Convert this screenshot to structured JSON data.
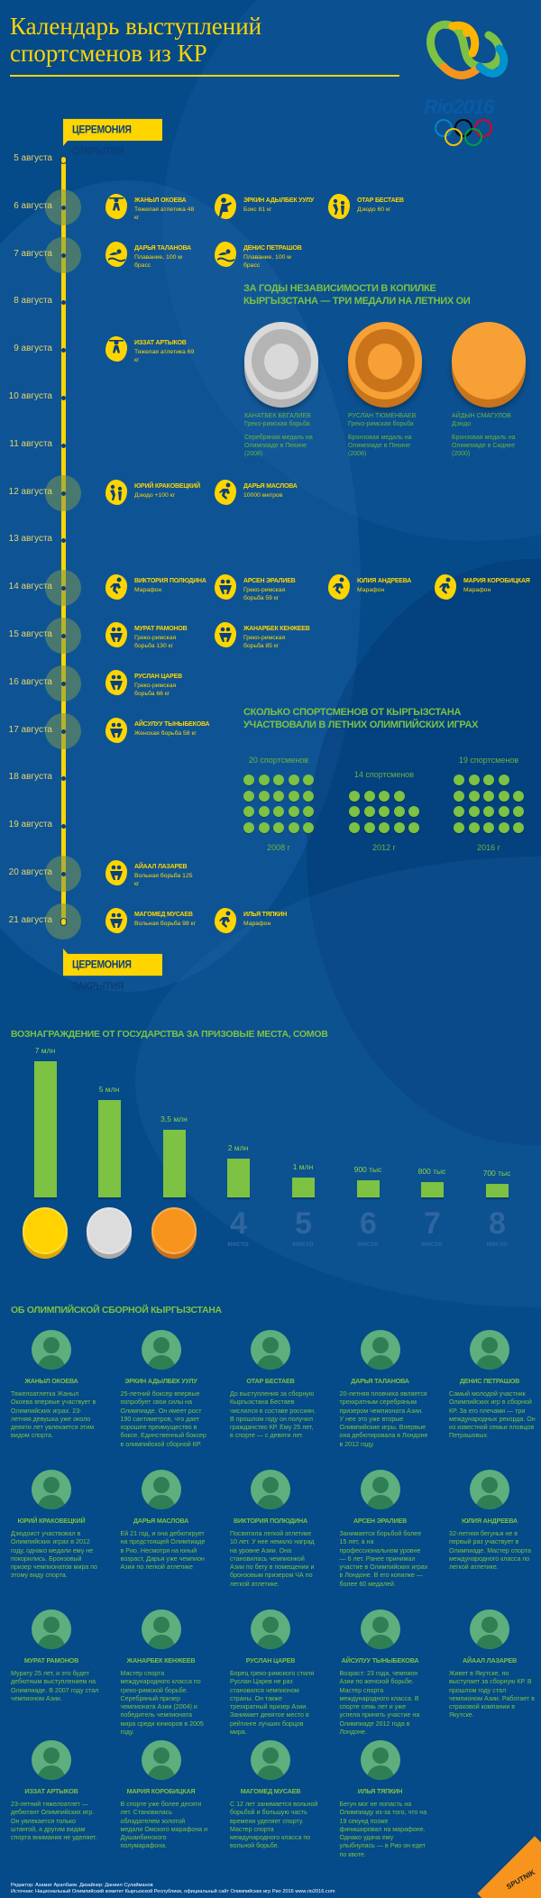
{
  "header": {
    "title_line1": "Календарь выступлений",
    "title_line2": "спортсменов из КР",
    "logo_text": "Rio2016"
  },
  "colors": {
    "background": "#054a89",
    "yellow": "#ffd500",
    "green": "#7dc242",
    "silver": "#c9c9c9",
    "bronze": "#f39a2b",
    "gold": "#ffd200"
  },
  "timeline": {
    "opening_label": "ЦЕРЕМОНИЯ ОТКРЫТИЯ",
    "closing_label": "ЦЕРЕМОНИЯ ЗАКРЫТИЯ",
    "days": [
      {
        "date": "5 августа",
        "highlight": false,
        "events": []
      },
      {
        "date": "6 августа",
        "highlight": true,
        "events": [
          {
            "name": "ЖАНЫЛ ОКОЕВА",
            "sport": "Тяжелая атлетика 48 кг",
            "icon": "weightlifting"
          },
          {
            "name": "ЭРКИН АДЫЛБЕК УУЛУ",
            "sport": "Бокс 81 кг",
            "icon": "boxing"
          },
          {
            "name": "ОТАР БЕСТАЕВ",
            "sport": "Дзюдо 60 кг",
            "icon": "judo"
          }
        ]
      },
      {
        "date": "7 августа",
        "highlight": true,
        "events": [
          {
            "name": "ДАРЬЯ ТАЛАНОВА",
            "sport": "Плавание, 100 м брасс",
            "icon": "swimming"
          },
          {
            "name": "ДЕНИС ПЕТРАШОВ",
            "sport": "Плавание, 100 м брасс",
            "icon": "swimming"
          }
        ]
      },
      {
        "date": "8 августа",
        "highlight": false,
        "events": []
      },
      {
        "date": "9 августа",
        "highlight": false,
        "events": [
          {
            "name": "ИЗЗАТ АРТЫКОВ",
            "sport": "Тяжелая атлетика 69 кг",
            "icon": "weightlifting"
          }
        ]
      },
      {
        "date": "10 августа",
        "highlight": false,
        "events": []
      },
      {
        "date": "11 августа",
        "highlight": false,
        "events": []
      },
      {
        "date": "12 августа",
        "highlight": true,
        "events": [
          {
            "name": "ЮРИЙ КРАКОВЕЦКИЙ",
            "sport": "Дзюдо +100 кг",
            "icon": "judo"
          },
          {
            "name": "ДАРЬЯ МАСЛОВА",
            "sport": "10000 метров",
            "icon": "running"
          }
        ]
      },
      {
        "date": "13 августа",
        "highlight": false,
        "events": []
      },
      {
        "date": "14 августа",
        "highlight": true,
        "events": [
          {
            "name": "ВИКТОРИЯ ПОЛЮДИНА",
            "sport": "Марафон",
            "icon": "running"
          },
          {
            "name": "АРСЕН ЭРАЛИЕВ",
            "sport": "Греко-римская борьба 59 кг",
            "icon": "wrestling"
          },
          {
            "name": "ЮЛИЯ АНДРЕЕВА",
            "sport": "Марафон",
            "icon": "running"
          },
          {
            "name": "МАРИЯ КОРОБИЦКАЯ",
            "sport": "Марафон",
            "icon": "running"
          }
        ]
      },
      {
        "date": "15 августа",
        "highlight": true,
        "events": [
          {
            "name": "МУРАТ РАМОНОВ",
            "sport": "Греко-римская борьба 130 кг",
            "icon": "wrestling"
          },
          {
            "name": "ЖАНАРБЕК КЕНЖЕЕВ",
            "sport": "Греко-римская борьба 85 кг",
            "icon": "wrestling"
          }
        ]
      },
      {
        "date": "16 августа",
        "highlight": true,
        "events": [
          {
            "name": "РУСЛАН ЦАРЕВ",
            "sport": "Греко-римская борьба 66 кг",
            "icon": "wrestling"
          }
        ]
      },
      {
        "date": "17 августа",
        "highlight": true,
        "events": [
          {
            "name": "АЙСУЛУУ ТЫНЫБЕКОВА",
            "sport": "Женская борьба 58 кг",
            "icon": "wrestling"
          }
        ]
      },
      {
        "date": "18 августа",
        "highlight": false,
        "events": []
      },
      {
        "date": "19 августа",
        "highlight": false,
        "events": []
      },
      {
        "date": "20 августа",
        "highlight": true,
        "events": [
          {
            "name": "АЙААЛ ЛАЗАРЕВ",
            "sport": "Вольная борьба 125 кг",
            "icon": "wrestling"
          }
        ]
      },
      {
        "date": "21 августа",
        "highlight": true,
        "events": [
          {
            "name": "МАГОМЕД МУСАЕВ",
            "sport": "Вольная борьба 98 кг",
            "icon": "wrestling"
          },
          {
            "name": "ИЛЬЯ ТЯПКИН",
            "sport": "Марафон",
            "icon": "running"
          }
        ]
      }
    ]
  },
  "medals_section": {
    "heading_line1": "ЗА ГОДЫ НЕЗАВИСИМОСТИ В КОПИЛКЕ",
    "heading_line2": "КЫРГЫЗСТАНА — ТРИ МЕДАЛИ НА ЛЕТНИХ ОИ",
    "medals": [
      {
        "name": "КАНАТБЕК БЕГАЛИЕВ",
        "sport": "Греко-римская борьба",
        "desc": "Серебряная медаль на Олимпиаде в Пекине (2008)",
        "type": "silver"
      },
      {
        "name": "РУСЛАН ТЮМЕНБАЕВ",
        "sport": "Греко-римская борьба",
        "desc": "Бронзовая медаль на Олимпиаде в Пекине (2008)",
        "type": "bronze"
      },
      {
        "name": "АЙДЫН СМАГУЛОВ",
        "sport": "Дзюдо",
        "desc": "Бронзовая медаль на Олимпиаде в Сиднее (2000)",
        "type": "bronze"
      }
    ]
  },
  "athletes_count": {
    "heading_line1": "СКОЛЬКО СПОРТСМЕНОВ ОТ КЫРГЫЗСТАНА",
    "heading_line2": "УЧАСТВОВАЛИ В ЛЕТНИХ ОЛИМПИЙСКИХ ИГРАХ",
    "games": [
      {
        "year": "2008 г",
        "count": 20,
        "label": "20 спортсменов"
      },
      {
        "year": "2012 г",
        "count": 14,
        "label": "14 спортсменов"
      },
      {
        "year": "2016 г",
        "count": 19,
        "label": "19 спортсменов"
      }
    ]
  },
  "chart_data": {
    "type": "bar",
    "title": "ВОЗНАГРАЖДЕНИЕ ОТ ГОСУДАРСТВА ЗА ПРИЗОВЫЕ МЕСТА, СОМОВ",
    "categories": [
      "gold",
      "silver",
      "bronze",
      "4",
      "5",
      "6",
      "7",
      "8"
    ],
    "place_word": "место",
    "values": [
      7000000,
      5000000,
      3500000,
      2000000,
      1000000,
      900000,
      800000,
      700000
    ],
    "value_labels": [
      "7 млн",
      "5 млн",
      "3,5 млн",
      "2 млн",
      "1 млн",
      "900 тыс",
      "800 тыс",
      "700 тыс"
    ],
    "ylim": [
      0,
      7000000
    ],
    "grid": false,
    "bar_color": "#7dc242"
  },
  "team": {
    "heading": "ОБ ОЛИМПИЙСКОЙ СБОРНОЙ КЫРГЫЗСТАНА",
    "athletes": [
      {
        "name": "ЖАНЫЛ ОКОЕВА",
        "bio": "Тяжелоатлетка Жаныл Окоева впервые участвует в Олимпийских играх. 23-летняя девушка уже около девяти лет увлекается этим видом спорта."
      },
      {
        "name": "ЭРКИН АДЫЛБЕК УУЛУ",
        "bio": "25-летний боксер впервые попробует свои силы на Олимпиаде. Он имеет рост 190 сантиметров, что дает хорошее преимущество в боксе. Единственный боксер в олимпийской сборной КР."
      },
      {
        "name": "ОТАР БЕСТАЕВ",
        "bio": "До выступления за сборную Кыргызстана Бестаев числился в составе россиян. В прошлом году он получил гражданство КР. Ему 25 лет, в спорте — с девяти лет."
      },
      {
        "name": "ДАРЬЯ ТАЛАНОВА",
        "bio": "20-летняя пловчиха является трехкратным серебряным призером чемпионата Азии. У нее это уже вторые Олимпийские игры. Впервые она дебютировала в Лондоне в 2012 году."
      },
      {
        "name": "ДЕНИС ПЕТРАШОВ",
        "bio": "Самый молодой участник Олимпийских игр в сборной КР. За его плечами — три международных рекорда. Он из известной семьи пловцов Петрашовых."
      },
      {
        "name": "ЮРИЙ КРАКОВЕЦКИЙ",
        "bio": "Дзюдоист участвовал в Олимпийских играх в 2012 году, однако медали ему не покорились. Бронзовый призер чемпионатов мира по этому виду спорта."
      },
      {
        "name": "ДАРЬЯ МАСЛОВА",
        "bio": "Ей 21 год, и она дебютирует на предстоящей Олимпиаде в Рио. Несмотря на юный возраст, Дарья уже чемпион Азии по легкой атлетике"
      },
      {
        "name": "ВИКТОРИЯ ПОЛЮДИНА",
        "bio": "Посвятила легкой атлетике 10 лет. У нее немало наград на уровне Азии. Она становилась чемпионкой Азии по бегу в помещении и бронзовым призером ЧА по легкой атлетике."
      },
      {
        "name": "АРСЕН ЭРАЛИЕВ",
        "bio": "Занимается борьбой более 15 лет, а на профессиональном уровне — 6 лет. Ранее принимал участие в Олимпийских играх в Лондоне. В его копилке — более 60 медалей."
      },
      {
        "name": "ЮЛИЯ АНДРЕЕВА",
        "bio": "32-летняя бегунья не в первый раз участвует в Олимпиаде. Мастер спорта международного класса по легкой атлетике."
      },
      {
        "name": "МУРАТ РАМОНОВ",
        "bio": "Мурату 25 лет, и это будет дебютным выступлением на Олимпиаде. В 2007 году стал чемпионом Азии."
      },
      {
        "name": "ЖАНАРБЕК КЕНЖЕЕВ",
        "bio": "Мастер спорта международного класса по греко-римской борьбе. Серебряный призер чемпионата Азии (2004) и победитель чемпионата мира среди юниоров в 2005 году."
      },
      {
        "name": "РУСЛАН ЦАРЕВ",
        "bio": "Борец греко-римского стиля Руслан Царев не раз становился чемпионом страны. Он также трехкратный призер Азии. Занимает девятое место в рейтинге лучших борцов мира."
      },
      {
        "name": "АЙСУЛУУ ТЫНЫБЕКОВА",
        "bio": "Возраст: 23 года, чемпион Азии по женской борьбе. Мастер спорта международного класса. В спорте семь лет и уже успела принять участие на Олимпиаде 2012 года в Лондоне."
      },
      {
        "name": "АЙААЛ ЛАЗАРЕВ",
        "bio": "Живет в Якутске, но выступает за сборную КР. В прошлом году стал чемпионом Азии. Работает в страховой компании в Якутске."
      },
      {
        "name": "ИЗЗАТ АРТЫКОВ",
        "bio": "23-летний тяжелоатлет — дебютант Олимпийских игр. Он увлекается только штангой, а другим видам спорта внимания не уделяет."
      },
      {
        "name": "МАРИЯ КОРОБИЦКАЯ",
        "bio": "В спорте уже более десяти лет. Становилась обладателем золотой медали Омского марафона и Душанбинского полумарафона."
      },
      {
        "name": "МАГОМЕД МУСАЕВ",
        "bio": "С 12 лет занимается вольной борьбой и большую часть времени уделяет спорту. Мастер спорта международного класса по вольной борьбе."
      },
      {
        "name": "ИЛЬЯ ТЯПКИН",
        "bio": "Бегун мог не попасть на Олимпиаду из-за того, что на 19 секунд позже финишировал на марафоне. Однако удача ему улыбнулась — в Рио он едет по квоте."
      }
    ]
  },
  "footer": {
    "credits": "Редактор: Азамат Аралбаев. Дизайнер: Даниил Сулайманов",
    "source": "Источник: Национальный Олимпийский комитет Кыргызской Республики, официальный сайт Олимпийских игр Рио 2016 www.rio2016.com",
    "brand": "SPUTNIK"
  }
}
